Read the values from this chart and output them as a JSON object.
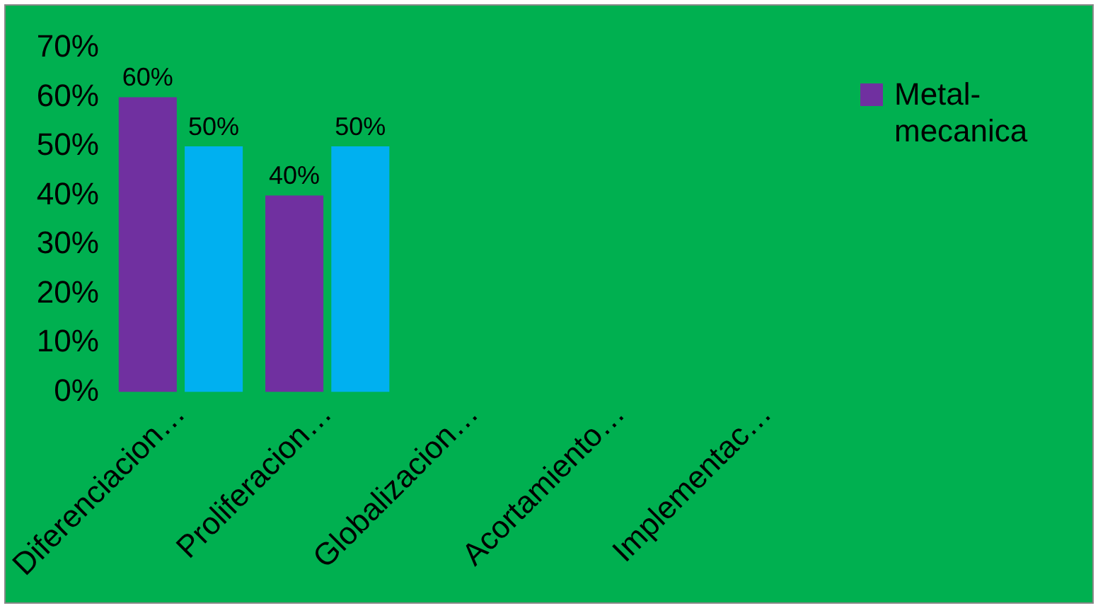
{
  "chart_data": {
    "type": "bar",
    "categories": [
      "Diferenciacion…",
      "Proliferacion…",
      "Globalizacion…",
      "Acortamiento…",
      "Implementac…"
    ],
    "series": [
      {
        "name": "Metal-mecanica",
        "color": "#7030a0",
        "values": [
          60,
          40,
          0,
          0,
          0
        ],
        "value_labels": [
          "60%",
          "40%",
          null,
          null,
          null
        ]
      },
      {
        "color": "#00b0f0",
        "values": [
          50,
          50,
          0,
          0,
          0
        ],
        "value_labels": [
          "50%",
          "50%",
          null,
          null,
          null
        ]
      }
    ],
    "ylim": [
      0,
      70
    ],
    "yticks": [
      {
        "value": 0,
        "label": "0%"
      },
      {
        "value": 10,
        "label": "10%"
      },
      {
        "value": 20,
        "label": "20%"
      },
      {
        "value": 30,
        "label": "30%"
      },
      {
        "value": 40,
        "label": "40%"
      },
      {
        "value": 50,
        "label": "50%"
      },
      {
        "value": 60,
        "label": "60%"
      },
      {
        "value": 70,
        "label": "70%"
      }
    ],
    "legend": "top right"
  }
}
